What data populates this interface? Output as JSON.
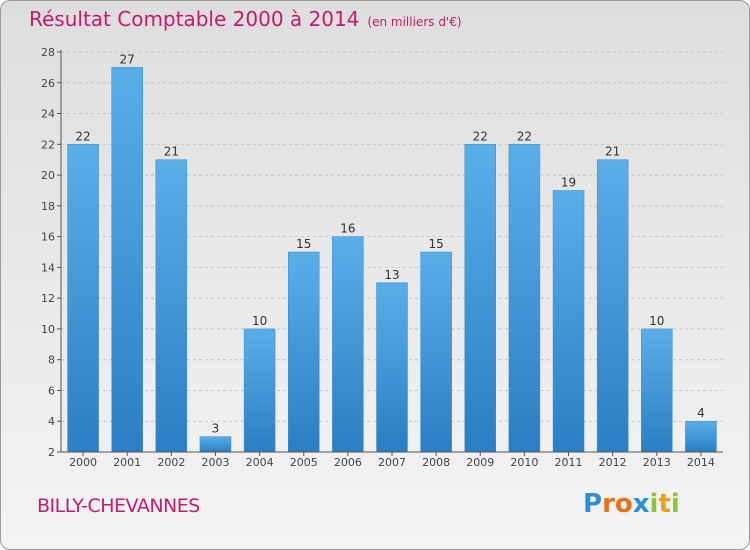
{
  "chart_data": {
    "type": "bar",
    "title": "Résultat Comptable 2000 à 2014",
    "subtitle": "(en milliers d'€)",
    "categories": [
      "2000",
      "2001",
      "2002",
      "2003",
      "2004",
      "2005",
      "2006",
      "2007",
      "2008",
      "2009",
      "2010",
      "2011",
      "2012",
      "2013",
      "2014"
    ],
    "values": [
      22,
      27,
      21,
      3,
      10,
      15,
      16,
      13,
      15,
      22,
      22,
      19,
      21,
      10,
      4
    ],
    "ylim": [
      2,
      28
    ],
    "yticks": [
      2,
      4,
      6,
      8,
      10,
      12,
      14,
      16,
      18,
      20,
      22,
      24,
      26,
      28
    ],
    "grid": true,
    "xlabel": "",
    "ylabel": ""
  },
  "location": "BILLY-CHEVANNES",
  "brand": {
    "letters": [
      "P",
      "r",
      "o",
      "x",
      "i",
      "t",
      "i"
    ],
    "colors": [
      "#2e8fd6",
      "#e8711a",
      "#e8711a",
      "#2e8fd6",
      "#8cc63f",
      "#e8a21a",
      "#8cc63f"
    ]
  },
  "colors": {
    "title": "#c61a6a",
    "bar_top": "#5aaee8",
    "bar_bottom": "#2a7fc4",
    "grid": "#c8c8c8"
  }
}
